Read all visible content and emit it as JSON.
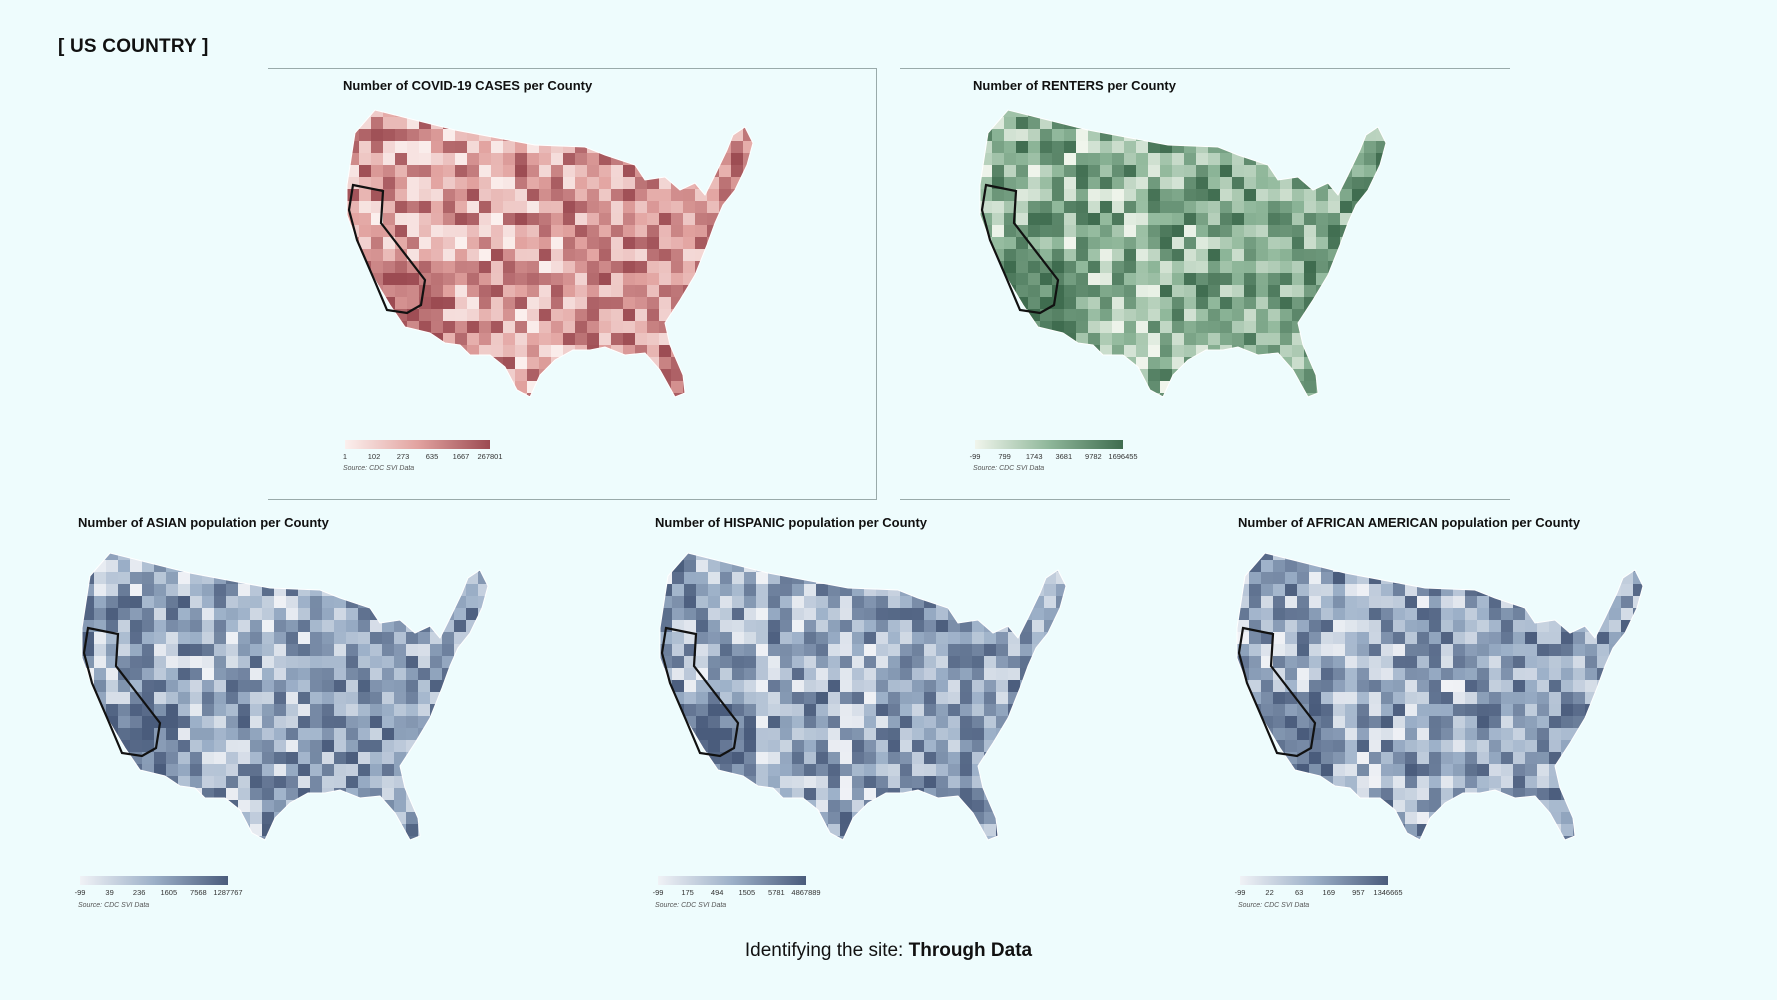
{
  "header": {
    "title": "[ US COUNTRY ]"
  },
  "footer": {
    "prefix": "Identifying the site: ",
    "emphasis": "Through Data"
  },
  "panels": [
    {
      "id": "covid",
      "title": "Number of COVID-19 CASES per County",
      "ticks": [
        "1",
        "102",
        "273",
        "635",
        "1667",
        "267801"
      ],
      "source": "Source: CDC SVI Data",
      "colors": {
        "low": "#fbf0ee",
        "mid": "#e2a3a0",
        "high": "#9c4b52"
      }
    },
    {
      "id": "renters",
      "title": "Number of RENTERS per County",
      "ticks": [
        "-99",
        "799",
        "1743",
        "3681",
        "9782",
        "1696455"
      ],
      "source": "Source: CDC SVI Data",
      "colors": {
        "low": "#f0f5ec",
        "mid": "#8fb79a",
        "high": "#3f6c4f"
      }
    },
    {
      "id": "asian",
      "title": "Number of ASIAN population per County",
      "ticks": [
        "-99",
        "39",
        "236",
        "1605",
        "7568",
        "1287767"
      ],
      "source": "Source: CDC SVI Data",
      "colors": {
        "low": "#f0f2f6",
        "mid": "#9cb0c8",
        "high": "#4a5c7c"
      }
    },
    {
      "id": "hispanic",
      "title": "Number of HISPANIC population per County",
      "ticks": [
        "-99",
        "175",
        "494",
        "1505",
        "5781",
        "4867889"
      ],
      "source": "Source: CDC SVI Data",
      "colors": {
        "low": "#f0f2f6",
        "mid": "#9cb0c8",
        "high": "#4a5c7c"
      }
    },
    {
      "id": "african-american",
      "title": "Number of AFRICAN AMERICAN population per County",
      "ticks": [
        "-99",
        "22",
        "63",
        "169",
        "957",
        "1346665"
      ],
      "source": "Source: CDC SVI Data",
      "colors": {
        "low": "#f0f2f6",
        "mid": "#9cb0c8",
        "high": "#4a5c7c"
      }
    }
  ]
}
